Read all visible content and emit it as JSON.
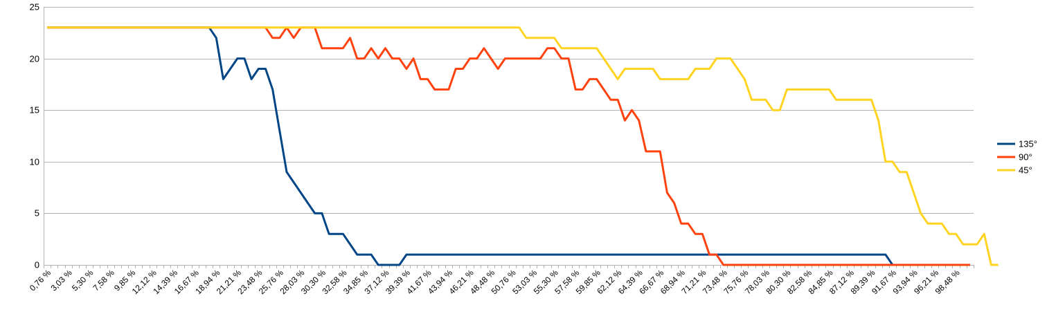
{
  "chart_data": {
    "type": "line",
    "title": "",
    "xlabel": "",
    "ylabel": "",
    "ylim": [
      0,
      25
    ],
    "yticks": [
      "0",
      "5",
      "10",
      "15",
      "20",
      "25"
    ],
    "grid": true,
    "legend_position": "right",
    "x_tick_labels": [
      "0,76 %",
      "3,03 %",
      "5,30 %",
      "7,58 %",
      "9,85 %",
      "12,12 %",
      "14,39 %",
      "16,67 %",
      "18,94 %",
      "21,21 %",
      "23,48 %",
      "25,76 %",
      "28,03 %",
      "30,30 %",
      "32,58 %",
      "34,85 %",
      "37,12 %",
      "39,39 %",
      "41,67 %",
      "43,94 %",
      "46,21 %",
      "48,48 %",
      "50,76 %",
      "53,03 %",
      "55,30 %",
      "57,58 %",
      "59,85 %",
      "62,12 %",
      "64,39 %",
      "66,67 %",
      "68,94 %",
      "71,21 %",
      "73,48 %",
      "75,76 %",
      "78,03 %",
      "80,30 %",
      "82,58 %",
      "84,85 %",
      "87,12 %",
      "89,39 %",
      "91,67 %",
      "93,94 %",
      "96,21 %",
      "98,48 %"
    ],
    "series": [
      {
        "name": "135°",
        "color": "#004586",
        "values": [
          23,
          23,
          23,
          23,
          23,
          23,
          23,
          23,
          23,
          23,
          23,
          23,
          23,
          23,
          23,
          23,
          23,
          23,
          23,
          23,
          23,
          23,
          23,
          23,
          22,
          18,
          19,
          20,
          20,
          18,
          19,
          19,
          17,
          13,
          9,
          8,
          7,
          6,
          5,
          5,
          3,
          3,
          3,
          2,
          1,
          1,
          1,
          0,
          0,
          0,
          0,
          1,
          1,
          1,
          1,
          1,
          1,
          1,
          1,
          1,
          1,
          1,
          1,
          1,
          1,
          1,
          1,
          1,
          1,
          1,
          1,
          1,
          1,
          1,
          1,
          1,
          1,
          1,
          1,
          1,
          1,
          1,
          1,
          1,
          1,
          1,
          1,
          1,
          1,
          1,
          1,
          1,
          1,
          1,
          1,
          1,
          1,
          1,
          1,
          1,
          1,
          1,
          1,
          1,
          1,
          1,
          1,
          1,
          1,
          1,
          1,
          1,
          1,
          1,
          1,
          1,
          1,
          1,
          1,
          1,
          0,
          0,
          0,
          0,
          0,
          0,
          0,
          0,
          0,
          0,
          0,
          0
        ]
      },
      {
        "name": "90°",
        "color": "#ff420e",
        "values": [
          23,
          23,
          23,
          23,
          23,
          23,
          23,
          23,
          23,
          23,
          23,
          23,
          23,
          23,
          23,
          23,
          23,
          23,
          23,
          23,
          23,
          23,
          23,
          23,
          23,
          23,
          23,
          23,
          23,
          23,
          23,
          23,
          22,
          22,
          23,
          22,
          23,
          23,
          23,
          21,
          21,
          21,
          21,
          22,
          20,
          20,
          21,
          20,
          21,
          20,
          20,
          19,
          20,
          18,
          18,
          17,
          17,
          17,
          19,
          19,
          20,
          20,
          21,
          20,
          19,
          20,
          20,
          20,
          20,
          20,
          20,
          21,
          21,
          20,
          20,
          17,
          17,
          18,
          18,
          17,
          16,
          16,
          14,
          15,
          14,
          11,
          11,
          11,
          7,
          6,
          4,
          4,
          3,
          3,
          1,
          1,
          0,
          0,
          0,
          0,
          0,
          0,
          0,
          0,
          0,
          0,
          0,
          0,
          0,
          0,
          0,
          0,
          0,
          0,
          0,
          0,
          0,
          0,
          0,
          0,
          0,
          0,
          0,
          0,
          0,
          0,
          0,
          0,
          0,
          0,
          0,
          0
        ]
      },
      {
        "name": "45°",
        "color": "#ffd320",
        "values": [
          23,
          23,
          23,
          23,
          23,
          23,
          23,
          23,
          23,
          23,
          23,
          23,
          23,
          23,
          23,
          23,
          23,
          23,
          23,
          23,
          23,
          23,
          23,
          23,
          23,
          23,
          23,
          23,
          23,
          23,
          23,
          23,
          23,
          23,
          23,
          23,
          23,
          23,
          23,
          23,
          23,
          23,
          23,
          23,
          23,
          23,
          23,
          23,
          23,
          23,
          23,
          23,
          23,
          23,
          23,
          23,
          23,
          23,
          23,
          23,
          23,
          23,
          23,
          23,
          23,
          23,
          23,
          23,
          22,
          22,
          22,
          22,
          22,
          21,
          21,
          21,
          21,
          21,
          21,
          20,
          19,
          18,
          19,
          19,
          19,
          19,
          19,
          18,
          18,
          18,
          18,
          18,
          19,
          19,
          19,
          20,
          20,
          20,
          19,
          18,
          16,
          16,
          16,
          15,
          15,
          17,
          17,
          17,
          17,
          17,
          17,
          17,
          16,
          16,
          16,
          16,
          16,
          16,
          14,
          10,
          10,
          9,
          9,
          7,
          5,
          4,
          4,
          4,
          3,
          3,
          2,
          2,
          2,
          3,
          0,
          0
        ]
      }
    ]
  }
}
